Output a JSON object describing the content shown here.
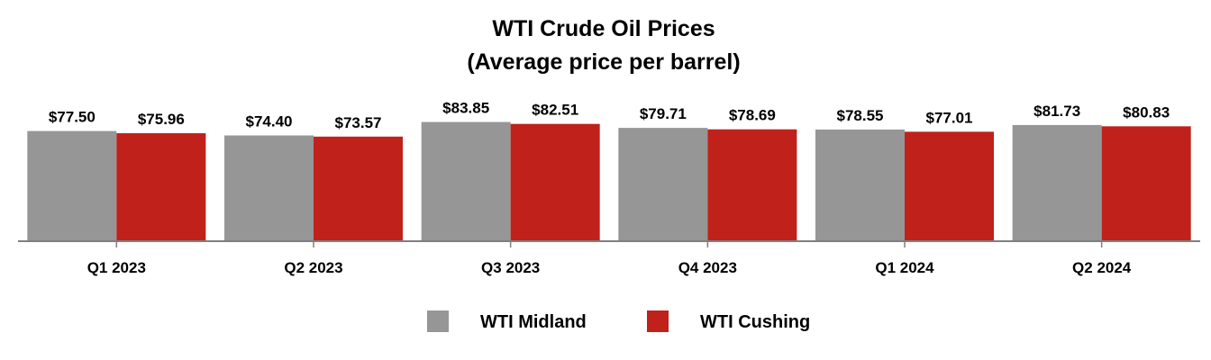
{
  "chart_data": {
    "type": "bar",
    "title": "WTI Crude Oil Prices",
    "subtitle": "(Average price per barrel)",
    "xlabel": "",
    "ylabel": "",
    "ylim": [
      0,
      90
    ],
    "grid": false,
    "legend_position": "bottom",
    "categories": [
      "Q1 2023",
      "Q2 2023",
      "Q3 2023",
      "Q4 2023",
      "Q1 2024",
      "Q2 2024"
    ],
    "series": [
      {
        "name": "WTI Midland",
        "color": "#969696",
        "values": [
          77.5,
          74.4,
          83.85,
          79.71,
          78.55,
          81.73
        ],
        "labels": [
          "$77.50",
          "$74.40",
          "$83.85",
          "$79.71",
          "$78.55",
          "$81.73"
        ]
      },
      {
        "name": "WTI Cushing",
        "color": "#C0211A",
        "values": [
          75.96,
          73.57,
          82.51,
          78.69,
          77.01,
          80.83
        ],
        "labels": [
          "$75.96",
          "$73.57",
          "$82.51",
          "$78.69",
          "$77.01",
          "$80.83"
        ]
      }
    ]
  }
}
